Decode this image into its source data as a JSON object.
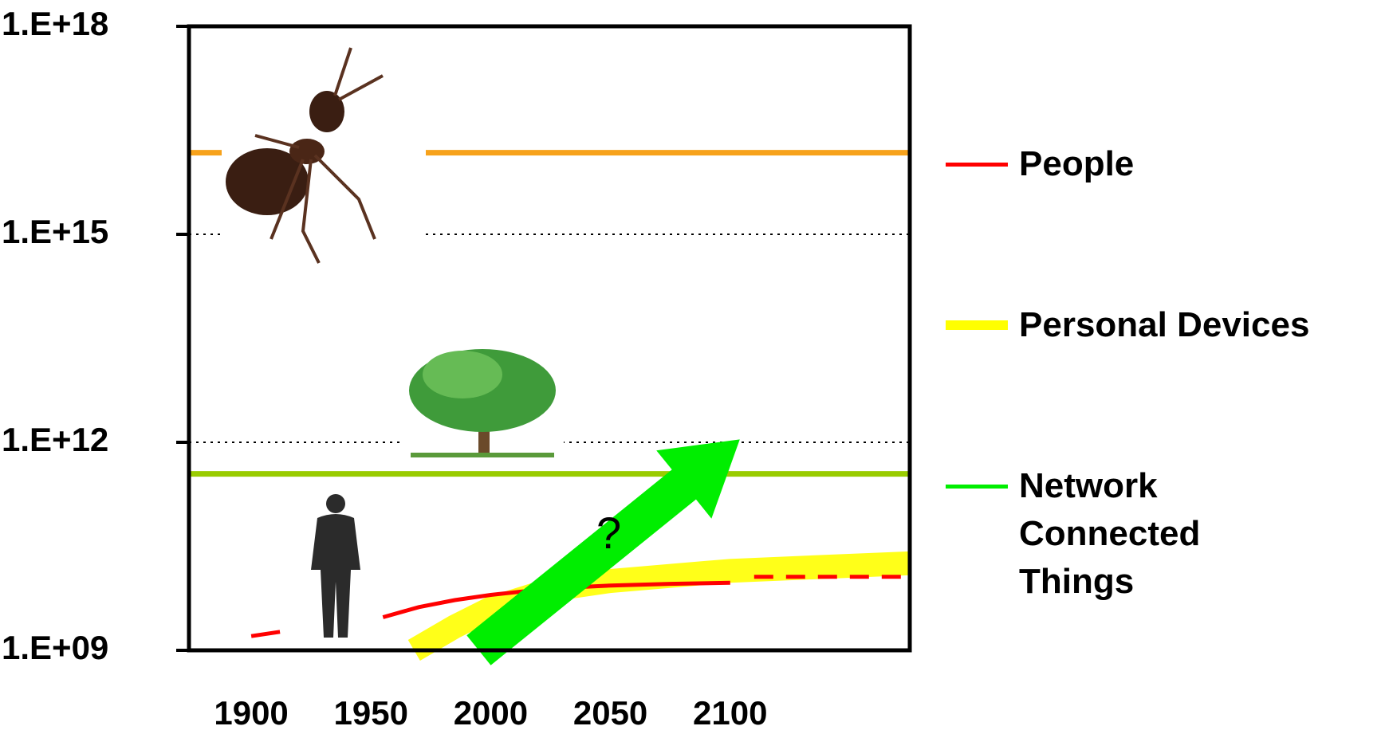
{
  "chart_data": {
    "type": "line",
    "log_y": true,
    "xlim": [
      1874,
      2175
    ],
    "xticks": [
      1900,
      1950,
      2000,
      2050,
      2100
    ],
    "ylim": [
      1000000000,
      1000000000000000000
    ],
    "yticks": [
      {
        "value": 1000000000,
        "label": "1.E+09"
      },
      {
        "value": 1000000000000,
        "label": "1.E+12"
      },
      {
        "value": 1000000000000000,
        "label": "1.E+15"
      },
      {
        "value": 1000000000000000000,
        "label": "1.E+18"
      }
    ],
    "grid": true,
    "legend": "right",
    "annotation": "?",
    "reference_lines": [
      {
        "value": 15000000000000000,
        "color": "#f7a21b"
      },
      {
        "value": 350000000000,
        "color": "#99cc00"
      }
    ],
    "series": [
      {
        "name": "People",
        "color": "#ff0000",
        "style": "line",
        "dashed_from": 2110,
        "x": [
          1900,
          1912,
          1930,
          1955,
          1970,
          1985,
          2000,
          2025,
          2050,
          2075,
          2100,
          2110,
          2175
        ],
        "values": [
          1600000000,
          1850000000,
          null,
          3000000000,
          4200000000,
          5300000000,
          6300000000,
          7800000000,
          8600000000,
          9100000000,
          9400000000,
          11500000000,
          11500000000
        ]
      },
      {
        "name": "Personal Devices",
        "color": "#ffff00",
        "style": "band",
        "x": [
          1968,
          1985,
          2000,
          2025,
          2050,
          2100,
          2175
        ],
        "values": [
          1000000000,
          2200000000,
          4000000000,
          7500000000,
          10000000000,
          14000000000,
          18000000000
        ]
      },
      {
        "name": "Network Connected Things",
        "color": "#00ee00",
        "style": "arrow",
        "x": [
          1995,
          2104
        ],
        "values": [
          1000000000,
          1100000000000
        ]
      }
    ]
  }
}
